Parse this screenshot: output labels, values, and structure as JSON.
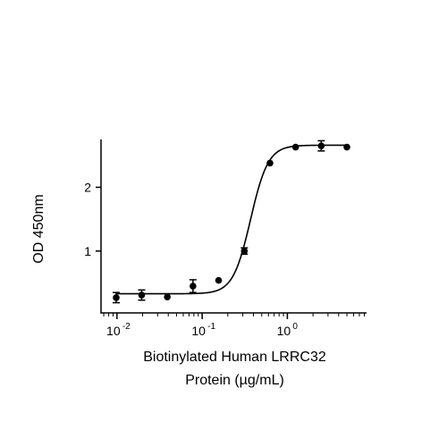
{
  "chart_data": {
    "type": "scatter",
    "title": "",
    "xlabel_lines": [
      "Biotinylated Human LRRC32",
      "Protein (µg/mL)"
    ],
    "ylabel": "OD 450nm",
    "x_scale": "log10",
    "xlim": [
      0.0065,
      8.5
    ],
    "ylim": [
      0.03,
      2.75
    ],
    "x_ticks": [
      {
        "value": 0.01,
        "base": "10",
        "exp": "-2"
      },
      {
        "value": 0.1,
        "base": "10",
        "exp": "-1"
      },
      {
        "value": 1,
        "base": "10",
        "exp": "0"
      }
    ],
    "y_ticks": [
      {
        "value": 1,
        "label": "1"
      },
      {
        "value": 2,
        "label": "2"
      }
    ],
    "grid": false,
    "legend": "none",
    "series": [
      {
        "points": [
          {
            "x": 0.0098,
            "y": 0.27,
            "err": 0.08
          },
          {
            "x": 0.0195,
            "y": 0.31,
            "err": 0.08
          },
          {
            "x": 0.039,
            "y": 0.28,
            "err": 0
          },
          {
            "x": 0.078,
            "y": 0.45,
            "err": 0.1
          },
          {
            "x": 0.156,
            "y": 0.54,
            "err": 0
          },
          {
            "x": 0.3125,
            "y": 1.0,
            "err": 0.05
          },
          {
            "x": 0.625,
            "y": 2.38,
            "err": 0
          },
          {
            "x": 1.25,
            "y": 2.63,
            "err": 0
          },
          {
            "x": 2.5,
            "y": 2.65,
            "err": 0.08
          },
          {
            "x": 5.0,
            "y": 2.63,
            "err": 0
          }
        ],
        "fit": {
          "model": "4PL",
          "bottom": 0.33,
          "top": 2.66,
          "ec50": 0.37,
          "hill": 4.2
        }
      }
    ],
    "colors": {
      "marker": "#000000",
      "line": "#000000",
      "axis": "#000000"
    }
  }
}
